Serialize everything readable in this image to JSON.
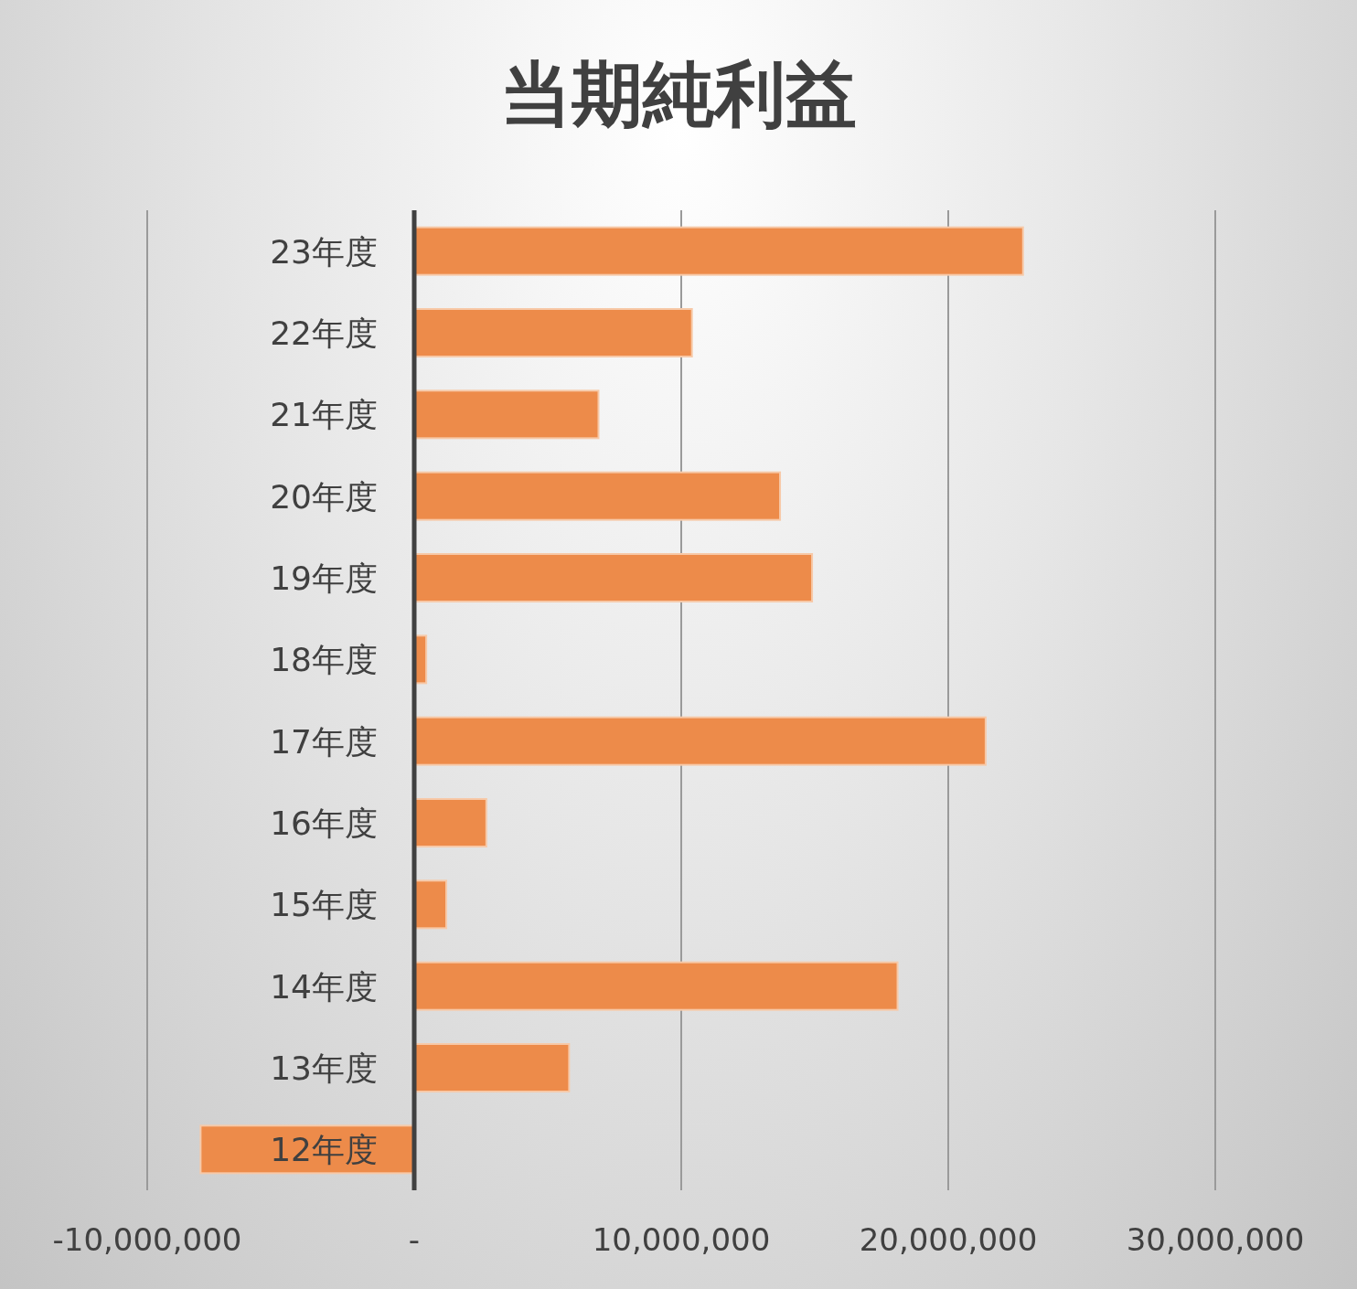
{
  "chart_data": {
    "type": "bar",
    "orientation": "horizontal",
    "title": "当期純利益",
    "categories": [
      "23年度",
      "22年度",
      "21年度",
      "20年度",
      "19年度",
      "18年度",
      "17年度",
      "16年度",
      "15年度",
      "14年度",
      "13年度",
      "12年度"
    ],
    "values": [
      22800000,
      10400000,
      6900000,
      13700000,
      14900000,
      450000,
      21400000,
      2700000,
      1200000,
      18100000,
      5800000,
      -8000000
    ],
    "color": "#ed8b4a",
    "xlim": [
      -10000000,
      30000000
    ],
    "xticks": [
      {
        "value": -10000000,
        "label": "-10,000,000"
      },
      {
        "value": 0,
        "label": "-"
      },
      {
        "value": 10000000,
        "label": "10,000,000"
      },
      {
        "value": 20000000,
        "label": "20,000,000"
      },
      {
        "value": 30000000,
        "label": "30,000,000"
      }
    ],
    "grid": "x"
  }
}
